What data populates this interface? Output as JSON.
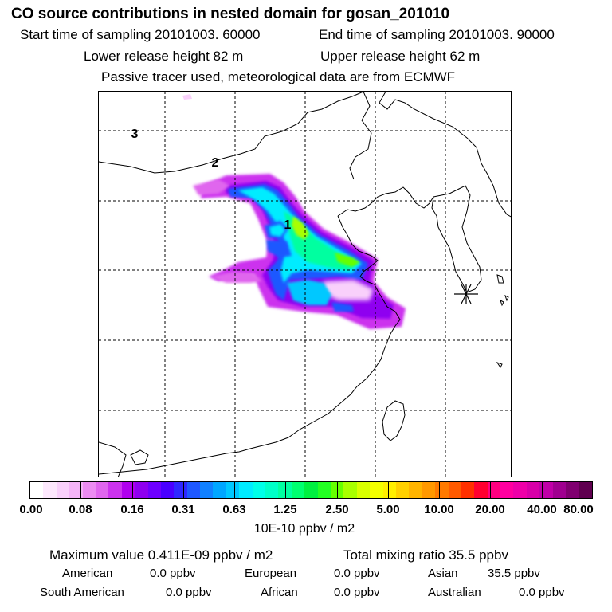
{
  "header": {
    "title": "CO  source contributions in nested domain for gosan_201010",
    "start_time": "Start time of sampling 20101003. 60000",
    "end_time": "End time of sampling 20101003. 90000",
    "lower_release": "Lower release height   82 m",
    "upper_release": "Upper release height   62 m",
    "tracer_note": "Passive tracer used, meteorological data are from ECMWF"
  },
  "map": {
    "region_labels": [
      "3",
      "2",
      "1"
    ],
    "receptor_marker": "gosan-receptor-asterisk"
  },
  "colorbar": {
    "tick_labels": [
      "0.00",
      "0.08",
      "0.16",
      "0.31",
      "0.63",
      "1.25",
      "2.50",
      "5.00",
      "10.00",
      "20.00",
      "40.00",
      "80.00"
    ],
    "unit": "10E-10 ppbv / m2",
    "colors": [
      "#ffffff",
      "#fde8fd",
      "#f9d0fb",
      "#f4b4f7",
      "#ec8cf2",
      "#e066ee",
      "#cc33ee",
      "#b000ee",
      "#8f00f0",
      "#6e00ff",
      "#4a00ff",
      "#2f28ff",
      "#1e58ff",
      "#1080ff",
      "#00a6ff",
      "#00c8ff",
      "#00ecff",
      "#00ffe8",
      "#00ffc8",
      "#00ffa0",
      "#00ff70",
      "#00f040",
      "#22ff22",
      "#66ff00",
      "#a8ff00",
      "#d8ff00",
      "#f4ff00",
      "#ffee00",
      "#ffd000",
      "#ffb400",
      "#ff9800",
      "#ff7a00",
      "#ff5a00",
      "#ff3000",
      "#ff0030",
      "#ff0080",
      "#ff00a0",
      "#ee00a8",
      "#d800a8",
      "#c000a8",
      "#a00090",
      "#800070",
      "#600050"
    ]
  },
  "stats": {
    "maximum_value": "Maximum value  0.411E-09 ppbv / m2",
    "total_mixing_ratio": "Total mixing ratio       35.5 ppbv",
    "american": {
      "label": "American",
      "value": "0.0 ppbv"
    },
    "european": {
      "label": "European",
      "value": "0.0 ppbv"
    },
    "asian": {
      "label": "Asian",
      "value": "35.5 ppbv"
    },
    "south_american": {
      "label": "South American",
      "value": "0.0 ppbv"
    },
    "african": {
      "label": "African",
      "value": "0.0 ppbv"
    },
    "australian": {
      "label": "Australian",
      "value": "0.0 ppbv"
    }
  }
}
